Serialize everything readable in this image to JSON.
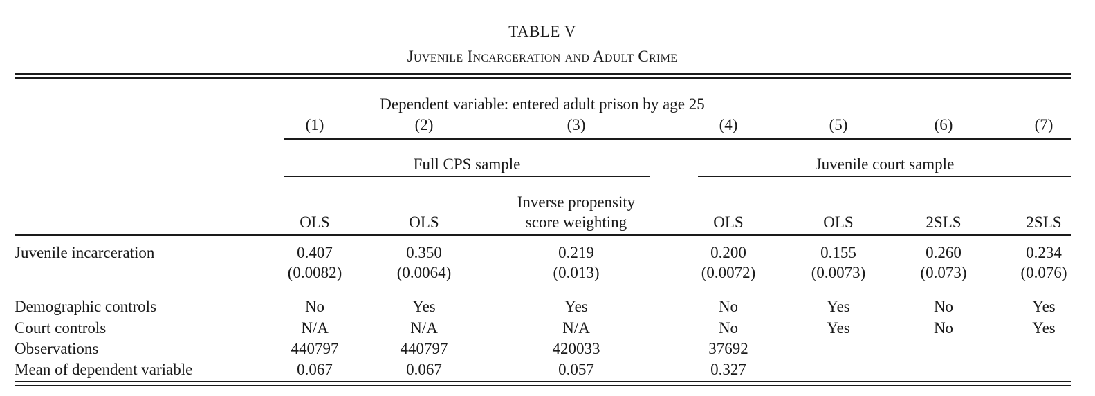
{
  "title": "TABLE V",
  "subtitle": "Juvenile Incarceration and Adult Crime",
  "dep_var_label": "Dependent variable: entered adult prison by age 25",
  "column_numbers": [
    "(1)",
    "(2)",
    "(3)",
    "(4)",
    "(5)",
    "(6)",
    "(7)"
  ],
  "groups": [
    {
      "label": "Full CPS sample"
    },
    {
      "label": "Juvenile court sample"
    }
  ],
  "methods": [
    "OLS",
    "OLS",
    "Inverse propensity score weighting",
    "OLS",
    "OLS",
    "2SLS",
    "2SLS"
  ],
  "method_ipw_line1": "Inverse propensity",
  "method_ipw_line2": "score weighting",
  "rows": {
    "juvenile": {
      "label": "Juvenile incarceration",
      "coef": [
        "0.407",
        "0.350",
        "0.219",
        "0.200",
        "0.155",
        "0.260",
        "0.234"
      ],
      "se": [
        "(0.0082)",
        "(0.0064)",
        "(0.013)",
        "(0.0072)",
        "(0.0073)",
        "(0.073)",
        "(0.076)"
      ]
    },
    "demographic": {
      "label": "Demographic controls",
      "values": [
        "No",
        "Yes",
        "Yes",
        "No",
        "Yes",
        "No",
        "Yes"
      ]
    },
    "court": {
      "label": "Court controls",
      "values": [
        "N/A",
        "N/A",
        "N/A",
        "No",
        "Yes",
        "No",
        "Yes"
      ]
    },
    "observations": {
      "label": "Observations",
      "values": [
        "440797",
        "440797",
        "420033",
        "37692",
        "",
        "",
        ""
      ]
    },
    "mean": {
      "label": "Mean of dependent variable",
      "values": [
        "0.067",
        "0.067",
        "0.057",
        "0.327",
        "",
        "",
        ""
      ]
    }
  }
}
